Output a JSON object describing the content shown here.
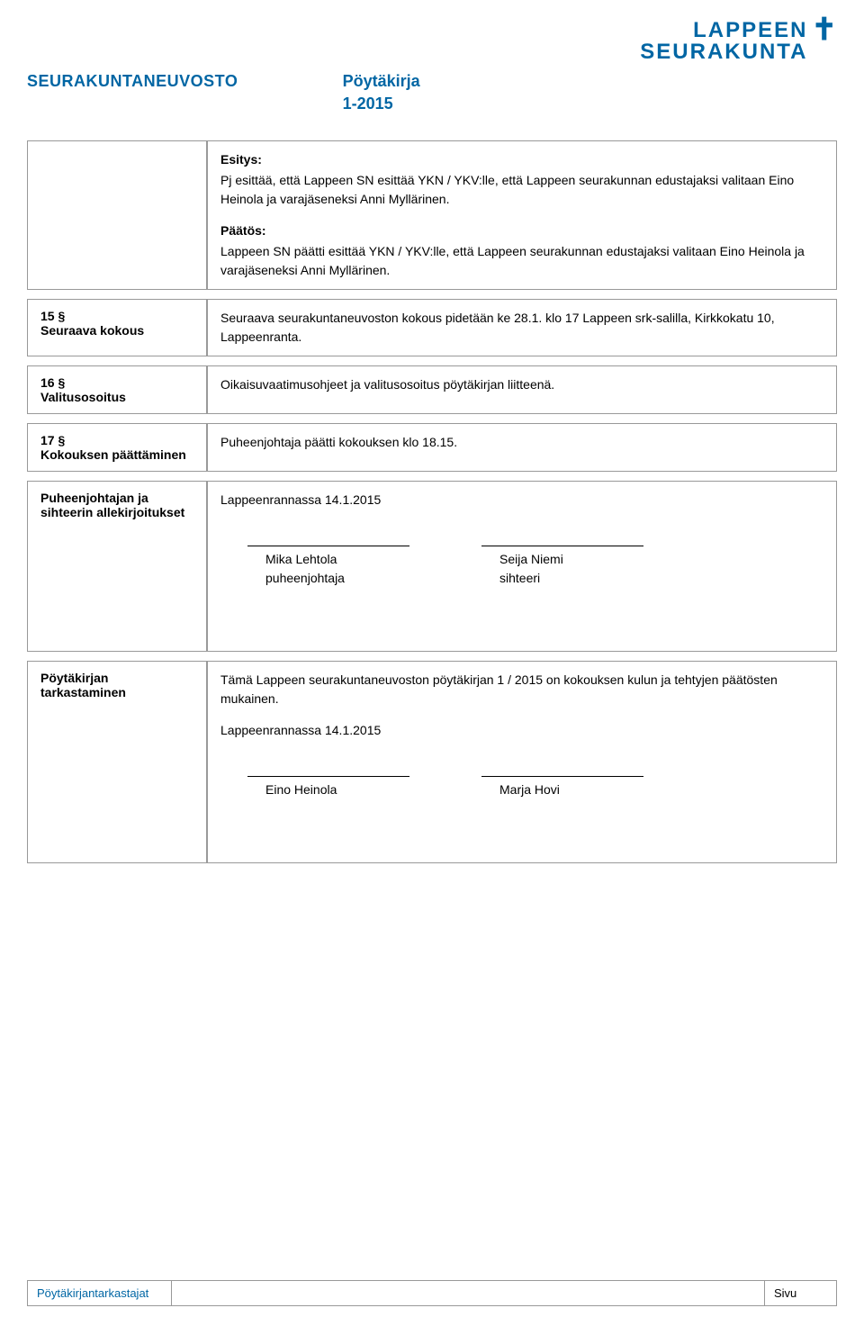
{
  "header": {
    "org_name": "SEURAKUNTANEUVOSTO",
    "doc_type": "Pöytäkirja",
    "doc_number": "1-2015",
    "logo_line1": "LAPPEEN",
    "logo_line2": "SEURAKUNTA",
    "cross": "✝"
  },
  "colors": {
    "brand": "#0066a4",
    "border": "#999999",
    "text": "#000000",
    "background": "#ffffff"
  },
  "sections": [
    {
      "left": "",
      "blocks": [
        {
          "label": "Esitys:",
          "text": "Pj esittää, että Lappeen SN esittää YKN / YKV:lle, että Lappeen seurakunnan edustajaksi valitaan Eino Heinola ja varajäseneksi Anni Myllärinen."
        },
        {
          "label": "Päätös:",
          "text": "Lappeen SN päätti esittää YKN / YKV:lle, että Lappeen seurakunnan edustajaksi valitaan Eino Heinola ja varajäseneksi Anni Myllärinen."
        }
      ]
    },
    {
      "left": "15 §\nSeuraava kokous",
      "blocks": [
        {
          "label": "",
          "text": "Seuraava seurakuntaneuvoston kokous pidetään ke 28.1. klo 17 Lappeen srk-salilla, Kirkkokatu 10, Lappeenranta."
        }
      ]
    },
    {
      "left": "16 §\nValitusosoitus",
      "blocks": [
        {
          "label": "",
          "text": "Oikaisuvaatimusohjeet ja valitusosoitus pöytäkirjan liitteenä."
        }
      ]
    },
    {
      "left": "17 §\nKokouksen päättäminen",
      "blocks": [
        {
          "label": "",
          "text": "Puheenjohtaja päätti kokouksen klo 18.15."
        }
      ]
    },
    {
      "left": "Puheenjohtajan ja sihteerin allekirjoitukset",
      "blocks": [
        {
          "label": "",
          "text": "Lappeenrannassa 14.1.2015"
        }
      ],
      "signatures": [
        {
          "name": "Mika Lehtola",
          "title": "puheenjohtaja"
        },
        {
          "name": "Seija Niemi",
          "title": "sihteeri"
        }
      ]
    },
    {
      "left": "Pöytäkirjan tarkastaminen",
      "blocks": [
        {
          "label": "",
          "text": "Tämä Lappeen seurakuntaneuvoston pöytäkirjan 1 / 2015 on kokouksen kulun ja tehtyjen päätösten mukainen."
        },
        {
          "label": "",
          "text": "Lappeenrannassa 14.1.2015"
        }
      ],
      "signatures": [
        {
          "name": "Eino Heinola",
          "title": ""
        },
        {
          "name": "Marja Hovi",
          "title": ""
        }
      ]
    }
  ],
  "footer": {
    "left": "Pöytäkirjantarkastajat",
    "right": "Sivu"
  }
}
